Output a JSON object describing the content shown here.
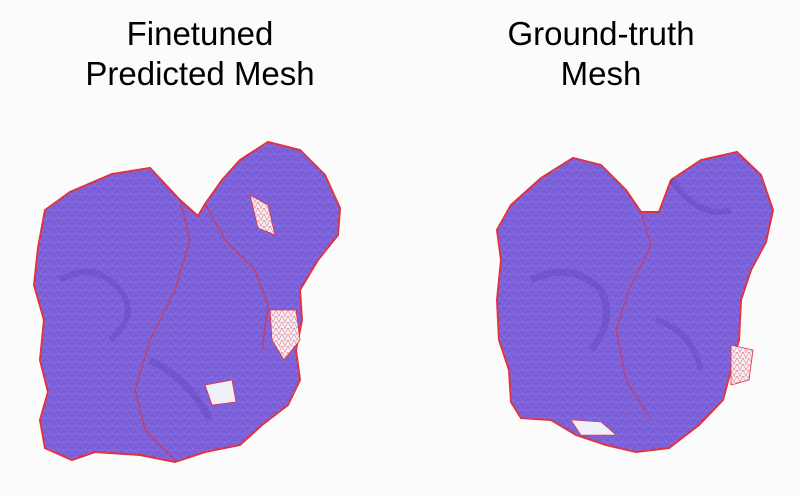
{
  "panels": [
    {
      "title_line1": "Finetuned",
      "title_line2": "Predicted Mesh"
    },
    {
      "title_line1": "Ground-truth",
      "title_line2": "Mesh"
    }
  ],
  "colors": {
    "background": "#fbfbfb",
    "mesh_fill": "#7a5ed8",
    "mesh_edge": "#e0303a"
  }
}
